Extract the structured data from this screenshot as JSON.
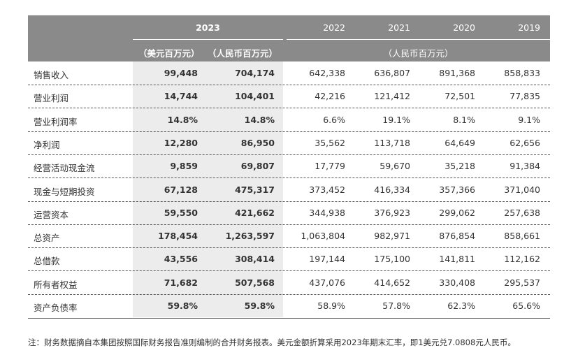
{
  "table": {
    "header": {
      "years": [
        "2023",
        "2022",
        "2021",
        "2020",
        "2019"
      ],
      "units": [
        "（美元百万元）",
        "（人民币百万元）",
        "（人民币百万元）"
      ]
    },
    "rows": [
      [
        "销售收入",
        "99,448",
        "704,174",
        "642,338",
        "636,807",
        "891,368",
        "858,833"
      ],
      [
        "营业利润",
        "14,744",
        "104,401",
        "42,216",
        "121,412",
        "72,501",
        "77,835"
      ],
      [
        "营业利润率",
        "14.8%",
        "14.8%",
        "6.6%",
        "19.1%",
        "8.1%",
        "9.1%"
      ],
      [
        "净利润",
        "12,280",
        "86,950",
        "35,562",
        "113,718",
        "64,649",
        "62,656"
      ],
      [
        "经营活动现金流",
        "9,859",
        "69,807",
        "17,779",
        "59,670",
        "35,218",
        "91,384"
      ],
      [
        "现金与短期投资",
        "67,128",
        "475,317",
        "373,452",
        "416,334",
        "357,366",
        "371,040"
      ],
      [
        "运营资本",
        "59,550",
        "421,662",
        "344,938",
        "376,923",
        "299,062",
        "257,638"
      ],
      [
        "总资产",
        "178,454",
        "1,263,597",
        "1,063,804",
        "982,971",
        "876,854",
        "858,661"
      ],
      [
        "总借款",
        "43,556",
        "308,414",
        "197,144",
        "175,100",
        "141,811",
        "112,162"
      ],
      [
        "所有者权益",
        "71,682",
        "507,568",
        "437,076",
        "414,652",
        "330,408",
        "295,537"
      ],
      [
        "资产负债率",
        "59.8%",
        "59.8%",
        "58.9%",
        "57.8%",
        "62.3%",
        "65.6%"
      ]
    ]
  },
  "footnote": "注：财务数据摘自本集团按照国际财务报告准则编制的合并财务报表。美元金额折算采用2023年期末汇率，即1美元兑7.0808元人民币。"
}
